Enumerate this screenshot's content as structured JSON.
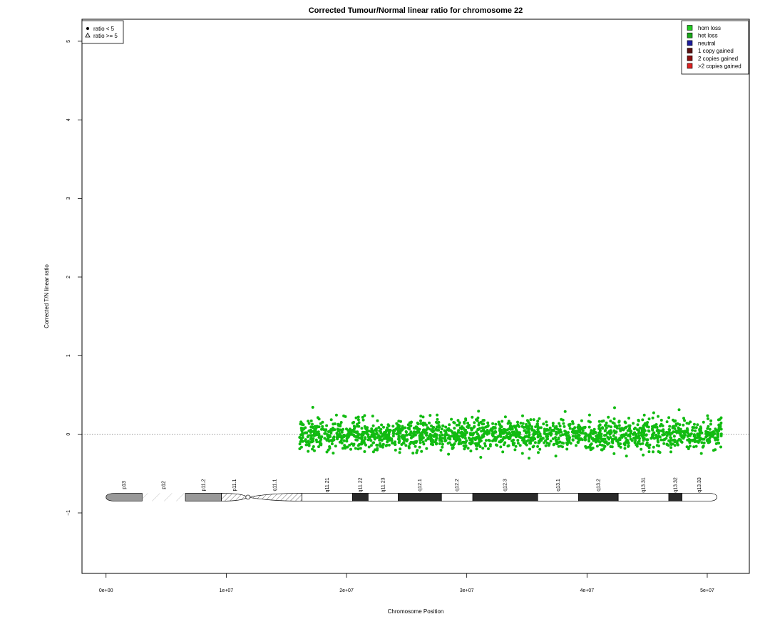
{
  "chart_data": {
    "type": "scatter",
    "title": "Corrected Tumour/Normal linear ratio for chromosome  22",
    "xlabel": "Chromosome Position",
    "ylabel": "Corrected T/N linear ratio",
    "xlim": [
      -2000000,
      53500000
    ],
    "ylim": [
      -1.77,
      5.28
    ],
    "x_ticks": [
      0,
      10000000,
      20000000,
      30000000,
      40000000,
      50000000
    ],
    "x_tick_labels": [
      "0e+00",
      "1e+07",
      "2e+07",
      "3e+07",
      "4e+07",
      "5e+07"
    ],
    "y_ticks": [
      -1,
      0,
      1,
      2,
      3,
      4,
      5
    ],
    "y_tick_labels": [
      "−1",
      "0",
      "1",
      "2",
      "3",
      "4",
      "5"
    ],
    "reference_line_y": 0,
    "grid": false,
    "shape_legend": {
      "position": "top-left",
      "items": [
        {
          "label": "ratio < 5",
          "symbol": "filled-circle"
        },
        {
          "label": "ratio >= 5",
          "symbol": "open-triangle"
        }
      ]
    },
    "color_legend": {
      "position": "top-right",
      "items": [
        {
          "label": "hom loss",
          "color": "#22cc22"
        },
        {
          "label": "het loss",
          "color": "#1aa81a"
        },
        {
          "label": "neutral",
          "color": "#1c1c9c"
        },
        {
          "label": "1 copy gained",
          "color": "#5a1010"
        },
        {
          "label": "2 copies gained",
          "color": "#8b1010"
        },
        {
          "label": ">2 copies gained",
          "color": "#dd2222"
        }
      ]
    },
    "series": [
      {
        "marker": "filled-circle",
        "color": "#11bb11",
        "x_range": [
          16100000,
          51200000
        ],
        "n_points": 1800,
        "y_mean": 0.0,
        "y_spread": 0.1,
        "y_min": -0.48,
        "y_max": 0.38
      }
    ],
    "ideogram": {
      "y": -0.8,
      "bands": [
        {
          "name": "p13",
          "start": 0,
          "end": 3000000,
          "stain": "gvar"
        },
        {
          "name": "p12",
          "start": 3000000,
          "end": 6600000,
          "stain": "stalk"
        },
        {
          "name": "p11.2",
          "start": 6600000,
          "end": 9600000,
          "stain": "gvar"
        },
        {
          "name": "p11.1",
          "start": 9600000,
          "end": 11800000,
          "stain": "acen"
        },
        {
          "name": "q11.1",
          "start": 11800000,
          "end": 16300000,
          "stain": "acen"
        },
        {
          "name": "q11.21",
          "start": 16300000,
          "end": 20500000,
          "stain": "gneg"
        },
        {
          "name": "q11.22",
          "start": 20500000,
          "end": 21800000,
          "stain": "gpos"
        },
        {
          "name": "q11.23",
          "start": 21800000,
          "end": 24300000,
          "stain": "gneg"
        },
        {
          "name": "q12.1",
          "start": 24300000,
          "end": 27900000,
          "stain": "gpos"
        },
        {
          "name": "q12.2",
          "start": 27900000,
          "end": 30500000,
          "stain": "gneg"
        },
        {
          "name": "q12.3",
          "start": 30500000,
          "end": 35900000,
          "stain": "gpos"
        },
        {
          "name": "q13.1",
          "start": 35900000,
          "end": 39300000,
          "stain": "gneg"
        },
        {
          "name": "q13.2",
          "start": 39300000,
          "end": 42600000,
          "stain": "gpos"
        },
        {
          "name": "q13.31",
          "start": 42600000,
          "end": 46800000,
          "stain": "gneg"
        },
        {
          "name": "q13.32",
          "start": 46800000,
          "end": 47900000,
          "stain": "gpos"
        },
        {
          "name": "q13.33",
          "start": 47900000,
          "end": 50800000,
          "stain": "gneg"
        }
      ]
    }
  }
}
